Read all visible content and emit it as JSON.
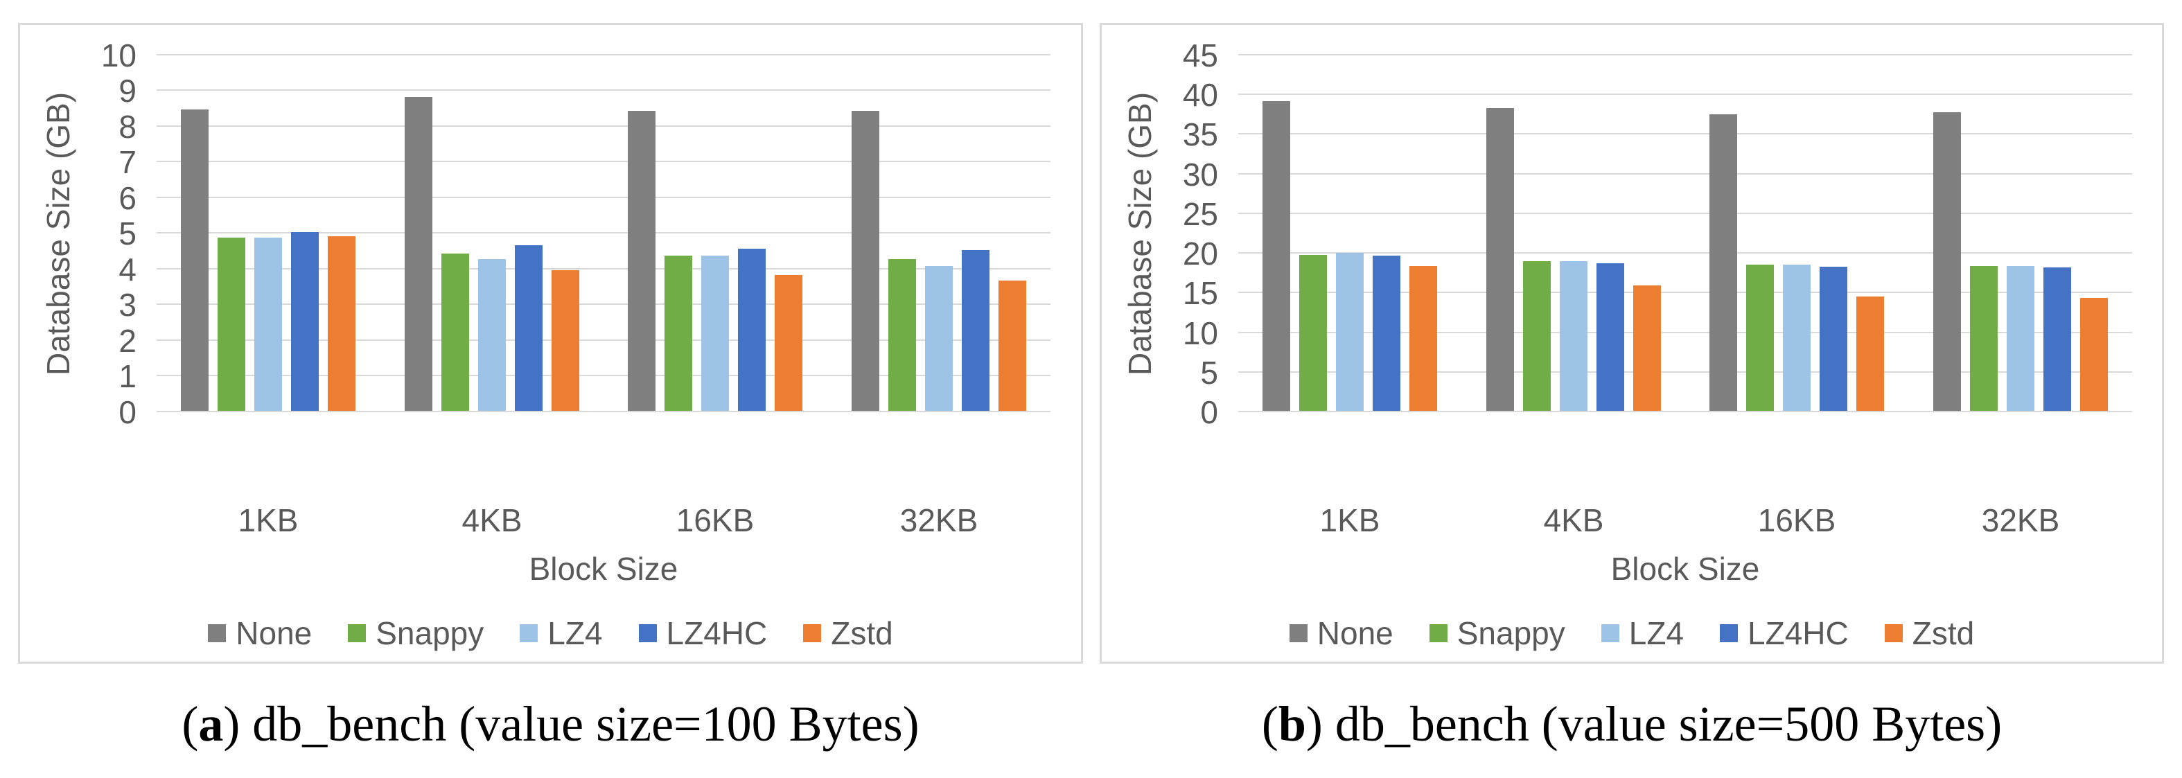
{
  "figure": {
    "captions": [
      {
        "prefix": "(",
        "bold": "a",
        "suffix": ") db_bench (value size=100 Bytes)"
      },
      {
        "prefix": "(",
        "bold": "b",
        "suffix": ") db_bench (value size=500 Bytes)"
      }
    ]
  },
  "colors": {
    "None": "#7F7F7F",
    "Snappy": "#70AD47",
    "LZ4": "#9DC3E6",
    "LZ4HC": "#4472C4",
    "Zstd": "#ED7D31",
    "gridline": "#D9D9D9",
    "axis_text": "#595959",
    "panel_border": "#D9D9D9"
  },
  "chart_data": [
    {
      "type": "bar",
      "title": "",
      "ylabel": "Database Size (GB)",
      "xlabel": "Block Size",
      "ylim": [
        0,
        10
      ],
      "ystep": 1,
      "yticks": [
        0,
        1,
        2,
        3,
        4,
        5,
        6,
        7,
        8,
        9,
        10
      ],
      "grid": true,
      "legend_position": "bottom",
      "categories": [
        "1KB",
        "4KB",
        "16KB",
        "32KB"
      ],
      "series": [
        {
          "name": "None",
          "values": [
            8.45,
            8.8,
            8.4,
            8.4
          ]
        },
        {
          "name": "Snappy",
          "values": [
            4.85,
            4.4,
            4.35,
            4.25
          ]
        },
        {
          "name": "LZ4",
          "values": [
            4.85,
            4.25,
            4.35,
            4.05
          ]
        },
        {
          "name": "LZ4HC",
          "values": [
            5.0,
            4.65,
            4.55,
            4.5
          ]
        },
        {
          "name": "Zstd",
          "values": [
            4.9,
            3.95,
            3.8,
            3.65
          ]
        }
      ]
    },
    {
      "type": "bar",
      "title": "",
      "ylabel": "Database Size (GB)",
      "xlabel": "Block Size",
      "ylim": [
        0,
        45
      ],
      "ystep": 5,
      "yticks": [
        0,
        5,
        10,
        15,
        20,
        25,
        30,
        35,
        40,
        45
      ],
      "grid": true,
      "legend_position": "bottom",
      "categories": [
        "1KB",
        "4KB",
        "16KB",
        "32KB"
      ],
      "series": [
        {
          "name": "None",
          "values": [
            39.1,
            38.2,
            37.4,
            37.7
          ]
        },
        {
          "name": "Snappy",
          "values": [
            19.7,
            18.9,
            18.4,
            18.3
          ]
        },
        {
          "name": "LZ4",
          "values": [
            19.9,
            18.9,
            18.4,
            18.3
          ]
        },
        {
          "name": "LZ4HC",
          "values": [
            19.6,
            18.6,
            18.2,
            18.1
          ]
        },
        {
          "name": "Zstd",
          "values": [
            18.3,
            15.8,
            14.4,
            14.2
          ]
        }
      ]
    }
  ]
}
